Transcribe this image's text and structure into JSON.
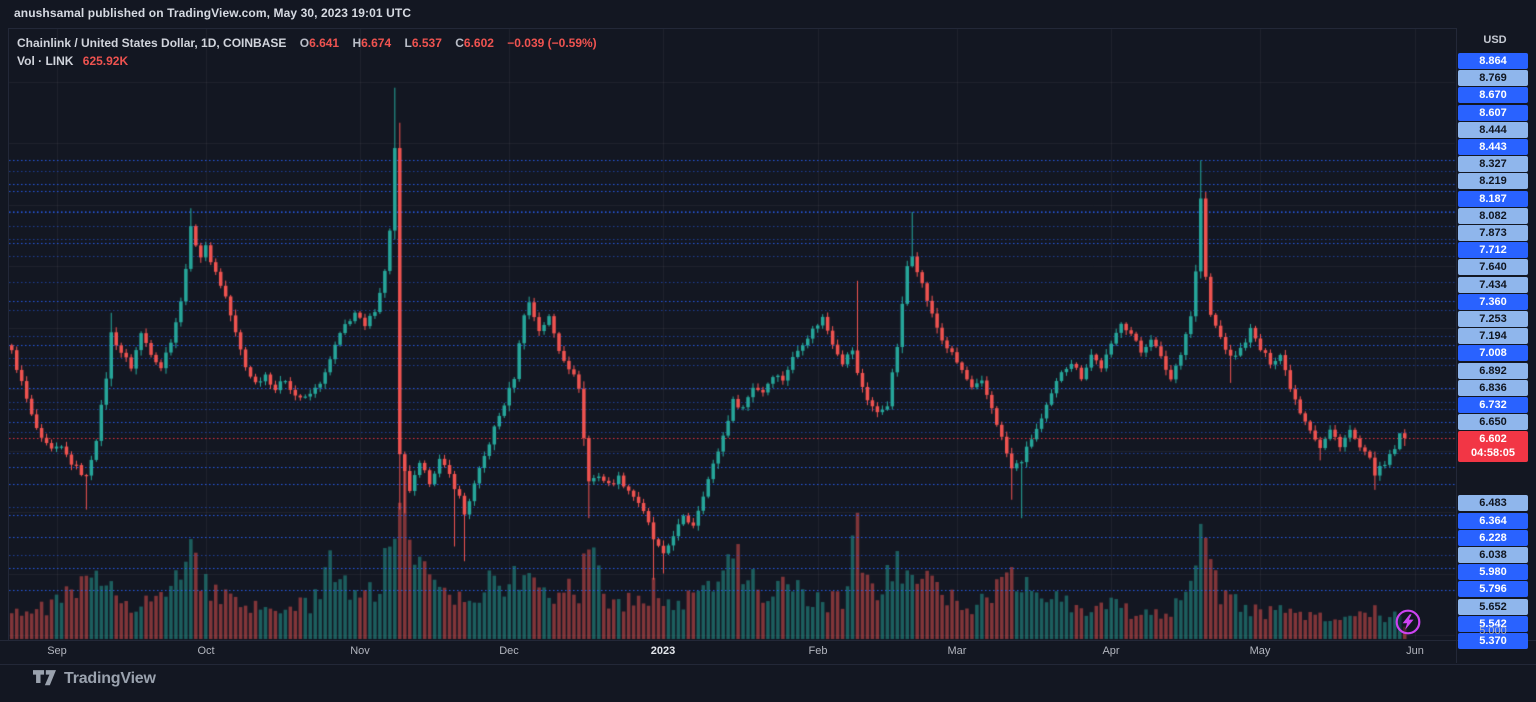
{
  "page": {
    "attribution": "anushsamal published on TradingView.com, May 30, 2023 19:01 UTC"
  },
  "header": {
    "symbol_title": "Chainlink / United States Dollar, 1D, COINBASE",
    "ohlc": {
      "open_label": "O",
      "open": "6.641",
      "high_label": "H",
      "high": "6.674",
      "low_label": "L",
      "low": "6.537",
      "close_label": "C",
      "close": "6.602",
      "change": "−0.039 (−0.59%)"
    },
    "volume_row": {
      "label": "Vol · LINK",
      "value": "625.92K"
    }
  },
  "price_axis": {
    "currency_label": "USD",
    "bottom_label": "5.000",
    "labels": [
      {
        "text": "8.864",
        "variant": "bright"
      },
      {
        "text": "8.769",
        "variant": "light"
      },
      {
        "text": "8.670",
        "variant": "bright"
      },
      {
        "text": "8.607",
        "variant": "bright"
      },
      {
        "text": "8.444",
        "variant": "light"
      },
      {
        "text": "8.443",
        "variant": "bright"
      },
      {
        "text": "8.327",
        "variant": "light"
      },
      {
        "text": "8.219",
        "variant": "light"
      },
      {
        "text": "8.187",
        "variant": "bright"
      },
      {
        "text": "8.082",
        "variant": "light"
      },
      {
        "text": "7.873",
        "variant": "light"
      },
      {
        "text": "7.712",
        "variant": "bright"
      },
      {
        "text": "7.640",
        "variant": "light"
      },
      {
        "text": "7.434",
        "variant": "light"
      },
      {
        "text": "7.360",
        "variant": "bright"
      },
      {
        "text": "7.253",
        "variant": "light"
      },
      {
        "text": "7.194",
        "variant": "light"
      },
      {
        "text": "7.008",
        "variant": "bright"
      },
      {
        "text": "6.892",
        "variant": "light"
      },
      {
        "text": "6.836",
        "variant": "light"
      },
      {
        "text": "6.732",
        "variant": "bright"
      },
      {
        "text": "6.650",
        "variant": "light"
      },
      {
        "text": "6.602",
        "variant": "current",
        "countdown": "04:58:05"
      },
      {
        "text": "6.483",
        "variant": "light"
      },
      {
        "text": "6.364",
        "variant": "bright"
      },
      {
        "text": "6.228",
        "variant": "bright"
      },
      {
        "text": "6.038",
        "variant": "light"
      },
      {
        "text": "5.980",
        "variant": "bright"
      },
      {
        "text": "5.796",
        "variant": "bright"
      },
      {
        "text": "5.652",
        "variant": "light"
      },
      {
        "text": "5.542",
        "variant": "bright"
      },
      {
        "text": "5.370",
        "variant": "bright"
      }
    ]
  },
  "time_axis": {
    "labels": [
      {
        "text": "Sep",
        "i": 9
      },
      {
        "text": "Oct",
        "i": 39
      },
      {
        "text": "Nov",
        "i": 70
      },
      {
        "text": "Dec",
        "i": 100
      },
      {
        "text": "2023",
        "i": 131,
        "emphasis": true
      },
      {
        "text": "Feb",
        "i": 162
      },
      {
        "text": "Mar",
        "i": 190
      },
      {
        "text": "Apr",
        "i": 221
      },
      {
        "text": "May",
        "i": 251
      },
      {
        "text": "Jun",
        "i": 282
      }
    ]
  },
  "footer": {
    "brand": "TradingView"
  },
  "colors": {
    "background": "#131722",
    "grid": "rgba(255,255,255,0.05)",
    "candle_up": "#26a69a",
    "candle_down": "#ef5350",
    "volume_up": "rgba(38,166,154,0.5)",
    "volume_down": "rgba(239,83,80,0.5)",
    "alert_line_bright": "rgba(41,98,255,0.9)",
    "alert_line_light": "rgba(41,98,255,0.55)",
    "current_price_line": "rgba(242,54,69,0.95)",
    "label_bright_bg": "#2962ff",
    "label_light_bg": "#8fb6ec",
    "label_current_bg": "#f23645",
    "boost_icon": "#cd43f2"
  },
  "chart_data": {
    "type": "candlestick+volume",
    "symbol": "Chainlink / United States Dollar",
    "interval": "1D",
    "exchange": "COINBASE",
    "candle_count": 281,
    "current_price": 6.602,
    "last_candle": {
      "open": 6.641,
      "high": 6.674,
      "low": 6.537,
      "close": 6.602
    },
    "price_gridline_step": 0.5,
    "price_axis_bottom": 5.0,
    "close_anchors": [
      [
        0,
        7.3
      ],
      [
        2,
        7.05
      ],
      [
        4,
        6.78
      ],
      [
        6,
        6.58
      ],
      [
        8,
        6.5
      ],
      [
        10,
        6.52
      ],
      [
        12,
        6.4
      ],
      [
        15,
        6.28
      ],
      [
        17,
        6.6
      ],
      [
        19,
        7.1
      ],
      [
        20,
        7.45
      ],
      [
        22,
        7.3
      ],
      [
        24,
        7.18
      ],
      [
        26,
        7.45
      ],
      [
        28,
        7.3
      ],
      [
        30,
        7.18
      ],
      [
        32,
        7.4
      ],
      [
        34,
        7.7
      ],
      [
        36,
        8.3
      ],
      [
        38,
        8.08
      ],
      [
        39,
        8.15
      ],
      [
        41,
        7.95
      ],
      [
        43,
        7.75
      ],
      [
        45,
        7.45
      ],
      [
        47,
        7.18
      ],
      [
        49,
        7.05
      ],
      [
        51,
        7.12
      ],
      [
        53,
        7.0
      ],
      [
        55,
        7.08
      ],
      [
        57,
        6.95
      ],
      [
        59,
        6.92
      ],
      [
        61,
        7.0
      ],
      [
        63,
        7.12
      ],
      [
        65,
        7.35
      ],
      [
        67,
        7.52
      ],
      [
        69,
        7.62
      ],
      [
        71,
        7.5
      ],
      [
        73,
        7.65
      ],
      [
        75,
        7.95
      ],
      [
        76,
        8.3
      ],
      [
        77,
        8.95
      ],
      [
        78,
        6.45
      ],
      [
        80,
        6.18
      ],
      [
        82,
        6.38
      ],
      [
        84,
        6.25
      ],
      [
        86,
        6.42
      ],
      [
        88,
        6.3
      ],
      [
        90,
        6.12
      ],
      [
        91,
        5.98
      ],
      [
        93,
        6.22
      ],
      [
        95,
        6.45
      ],
      [
        97,
        6.68
      ],
      [
        99,
        6.88
      ],
      [
        101,
        7.1
      ],
      [
        103,
        7.62
      ],
      [
        104,
        7.7
      ],
      [
        106,
        7.48
      ],
      [
        108,
        7.58
      ],
      [
        110,
        7.32
      ],
      [
        112,
        7.18
      ],
      [
        114,
        7.02
      ],
      [
        115,
        6.6
      ],
      [
        116,
        6.25
      ],
      [
        118,
        6.3
      ],
      [
        120,
        6.22
      ],
      [
        122,
        6.28
      ],
      [
        124,
        6.18
      ],
      [
        126,
        6.08
      ],
      [
        128,
        5.9
      ],
      [
        129,
        5.78
      ],
      [
        131,
        5.64
      ],
      [
        133,
        5.82
      ],
      [
        135,
        5.95
      ],
      [
        137,
        5.9
      ],
      [
        139,
        6.15
      ],
      [
        141,
        6.38
      ],
      [
        143,
        6.62
      ],
      [
        145,
        6.9
      ],
      [
        147,
        6.85
      ],
      [
        149,
        7.02
      ],
      [
        151,
        6.98
      ],
      [
        153,
        7.12
      ],
      [
        155,
        7.08
      ],
      [
        157,
        7.25
      ],
      [
        159,
        7.38
      ],
      [
        161,
        7.48
      ],
      [
        163,
        7.58
      ],
      [
        165,
        7.38
      ],
      [
        167,
        7.22
      ],
      [
        169,
        7.32
      ],
      [
        170,
        7.12
      ],
      [
        172,
        6.92
      ],
      [
        174,
        6.8
      ],
      [
        176,
        6.88
      ],
      [
        178,
        7.35
      ],
      [
        180,
        8.0
      ],
      [
        181,
        8.1
      ],
      [
        183,
        7.85
      ],
      [
        185,
        7.6
      ],
      [
        187,
        7.4
      ],
      [
        189,
        7.28
      ],
      [
        191,
        7.15
      ],
      [
        193,
        7.0
      ],
      [
        195,
        7.05
      ],
      [
        197,
        6.85
      ],
      [
        199,
        6.6
      ],
      [
        201,
        6.35
      ],
      [
        203,
        6.42
      ],
      [
        205,
        6.6
      ],
      [
        207,
        6.75
      ],
      [
        209,
        6.95
      ],
      [
        211,
        7.15
      ],
      [
        213,
        7.22
      ],
      [
        215,
        7.1
      ],
      [
        217,
        7.28
      ],
      [
        219,
        7.18
      ],
      [
        221,
        7.35
      ],
      [
        223,
        7.55
      ],
      [
        225,
        7.45
      ],
      [
        227,
        7.3
      ],
      [
        229,
        7.42
      ],
      [
        231,
        7.25
      ],
      [
        233,
        7.08
      ],
      [
        235,
        7.3
      ],
      [
        237,
        7.6
      ],
      [
        238,
        7.95
      ],
      [
        239,
        8.55
      ],
      [
        240,
        7.9
      ],
      [
        241,
        7.6
      ],
      [
        243,
        7.42
      ],
      [
        245,
        7.25
      ],
      [
        247,
        7.32
      ],
      [
        249,
        7.48
      ],
      [
        251,
        7.32
      ],
      [
        253,
        7.22
      ],
      [
        255,
        7.28
      ],
      [
        257,
        7.02
      ],
      [
        259,
        6.82
      ],
      [
        261,
        6.68
      ],
      [
        263,
        6.52
      ],
      [
        265,
        6.66
      ],
      [
        267,
        6.55
      ],
      [
        269,
        6.66
      ],
      [
        271,
        6.52
      ],
      [
        273,
        6.42
      ],
      [
        274,
        6.32
      ],
      [
        276,
        6.38
      ],
      [
        278,
        6.52
      ],
      [
        280,
        6.602
      ]
    ],
    "wick_events": [
      {
        "i": 15,
        "low": 6.02
      },
      {
        "i": 20,
        "high": 7.62
      },
      {
        "i": 36,
        "high": 8.47
      },
      {
        "i": 77,
        "high": 9.45
      },
      {
        "i": 78,
        "low": 6.02
      },
      {
        "i": 79,
        "low": 5.99
      },
      {
        "i": 89,
        "low": 5.72
      },
      {
        "i": 91,
        "low": 5.6
      },
      {
        "i": 111,
        "high": 7.35
      },
      {
        "i": 116,
        "low": 5.95
      },
      {
        "i": 129,
        "low": 5.45
      },
      {
        "i": 131,
        "low": 5.5
      },
      {
        "i": 170,
        "high": 7.88
      },
      {
        "i": 181,
        "high": 8.44
      },
      {
        "i": 201,
        "low": 6.1
      },
      {
        "i": 203,
        "low": 5.95
      },
      {
        "i": 239,
        "high": 8.86
      },
      {
        "i": 245,
        "low": 7.05
      },
      {
        "i": 263,
        "low": 6.42
      },
      {
        "i": 274,
        "low": 6.18
      }
    ],
    "volume_anchors": [
      [
        0,
        0.18
      ],
      [
        5,
        0.15
      ],
      [
        10,
        0.22
      ],
      [
        15,
        0.3
      ],
      [
        20,
        0.32
      ],
      [
        24,
        0.2
      ],
      [
        28,
        0.22
      ],
      [
        32,
        0.25
      ],
      [
        36,
        0.52
      ],
      [
        38,
        0.35
      ],
      [
        40,
        0.28
      ],
      [
        44,
        0.2
      ],
      [
        48,
        0.16
      ],
      [
        52,
        0.18
      ],
      [
        56,
        0.16
      ],
      [
        60,
        0.2
      ],
      [
        64,
        0.38
      ],
      [
        66,
        0.42
      ],
      [
        68,
        0.3
      ],
      [
        71,
        0.25
      ],
      [
        74,
        0.28
      ],
      [
        76,
        0.5
      ],
      [
        78,
        1.0
      ],
      [
        79,
        0.72
      ],
      [
        81,
        0.45
      ],
      [
        84,
        0.3
      ],
      [
        87,
        0.22
      ],
      [
        90,
        0.28
      ],
      [
        93,
        0.2
      ],
      [
        97,
        0.45
      ],
      [
        100,
        0.28
      ],
      [
        103,
        0.38
      ],
      [
        105,
        0.3
      ],
      [
        108,
        0.24
      ],
      [
        111,
        0.3
      ],
      [
        114,
        0.28
      ],
      [
        116,
        0.48
      ],
      [
        119,
        0.26
      ],
      [
        122,
        0.2
      ],
      [
        126,
        0.22
      ],
      [
        129,
        0.28
      ],
      [
        131,
        0.18
      ],
      [
        134,
        0.2
      ],
      [
        138,
        0.22
      ],
      [
        141,
        0.3
      ],
      [
        144,
        0.65
      ],
      [
        146,
        0.42
      ],
      [
        149,
        0.3
      ],
      [
        152,
        0.26
      ],
      [
        156,
        0.28
      ],
      [
        160,
        0.24
      ],
      [
        164,
        0.2
      ],
      [
        167,
        0.22
      ],
      [
        170,
        0.62
      ],
      [
        172,
        0.35
      ],
      [
        175,
        0.25
      ],
      [
        177,
        0.4
      ],
      [
        179,
        0.38
      ],
      [
        181,
        0.35
      ],
      [
        184,
        0.3
      ],
      [
        187,
        0.24
      ],
      [
        190,
        0.2
      ],
      [
        193,
        0.18
      ],
      [
        196,
        0.22
      ],
      [
        199,
        0.3
      ],
      [
        201,
        0.38
      ],
      [
        203,
        0.35
      ],
      [
        206,
        0.28
      ],
      [
        209,
        0.24
      ],
      [
        212,
        0.2
      ],
      [
        215,
        0.18
      ],
      [
        218,
        0.16
      ],
      [
        221,
        0.18
      ],
      [
        224,
        0.16
      ],
      [
        227,
        0.15
      ],
      [
        230,
        0.16
      ],
      [
        233,
        0.15
      ],
      [
        236,
        0.25
      ],
      [
        238,
        0.35
      ],
      [
        239,
        0.5
      ],
      [
        240,
        0.45
      ],
      [
        242,
        0.3
      ],
      [
        245,
        0.22
      ],
      [
        248,
        0.18
      ],
      [
        251,
        0.16
      ],
      [
        254,
        0.14
      ],
      [
        257,
        0.17
      ],
      [
        260,
        0.13
      ],
      [
        263,
        0.15
      ],
      [
        266,
        0.11
      ],
      [
        269,
        0.13
      ],
      [
        272,
        0.12
      ],
      [
        274,
        0.15
      ],
      [
        276,
        0.1
      ],
      [
        278,
        0.12
      ],
      [
        280,
        0.08
      ]
    ]
  }
}
